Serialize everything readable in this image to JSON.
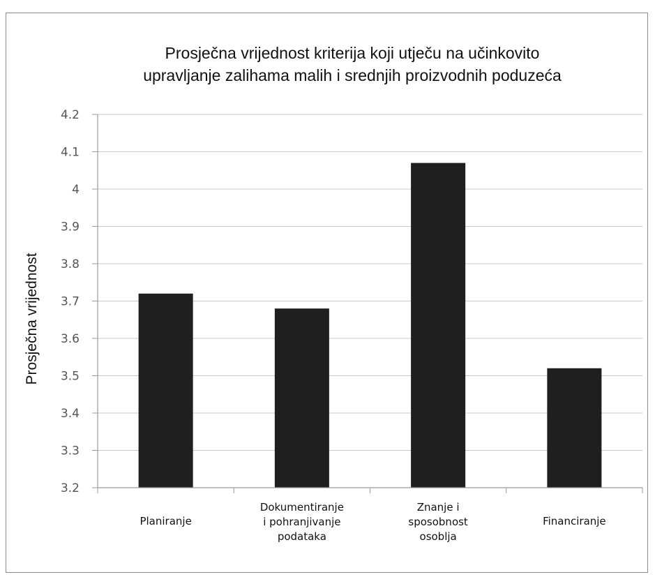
{
  "chart_data": {
    "type": "bar",
    "title": [
      "Prosječna vrijednost kriterija koji utječu na učinkovito",
      "upravljanje zalihama malih i srednjih proizvodnih poduzeća"
    ],
    "ylabel": "Prosječna vrijednost",
    "xlabel": "",
    "categories": [
      [
        "Planiranje"
      ],
      [
        "Dokumentiranje",
        "i pohranjivanje",
        "podataka"
      ],
      [
        "Znanje i",
        "sposobnost",
        "osoblja"
      ],
      [
        "Financiranje"
      ]
    ],
    "values": [
      3.72,
      3.68,
      4.07,
      3.52
    ],
    "ylim": [
      3.2,
      4.2
    ],
    "yticks": [
      "3.2",
      "3.3",
      "3.4",
      "3.5",
      "3.6",
      "3.7",
      "3.8",
      "3.9",
      "4",
      "4.1",
      "4.2"
    ],
    "grid": true,
    "legend": "none",
    "colors": {
      "bar": "#1f1f1f",
      "grid": "#c8c8c8",
      "axis": "#9a9a9a"
    }
  }
}
